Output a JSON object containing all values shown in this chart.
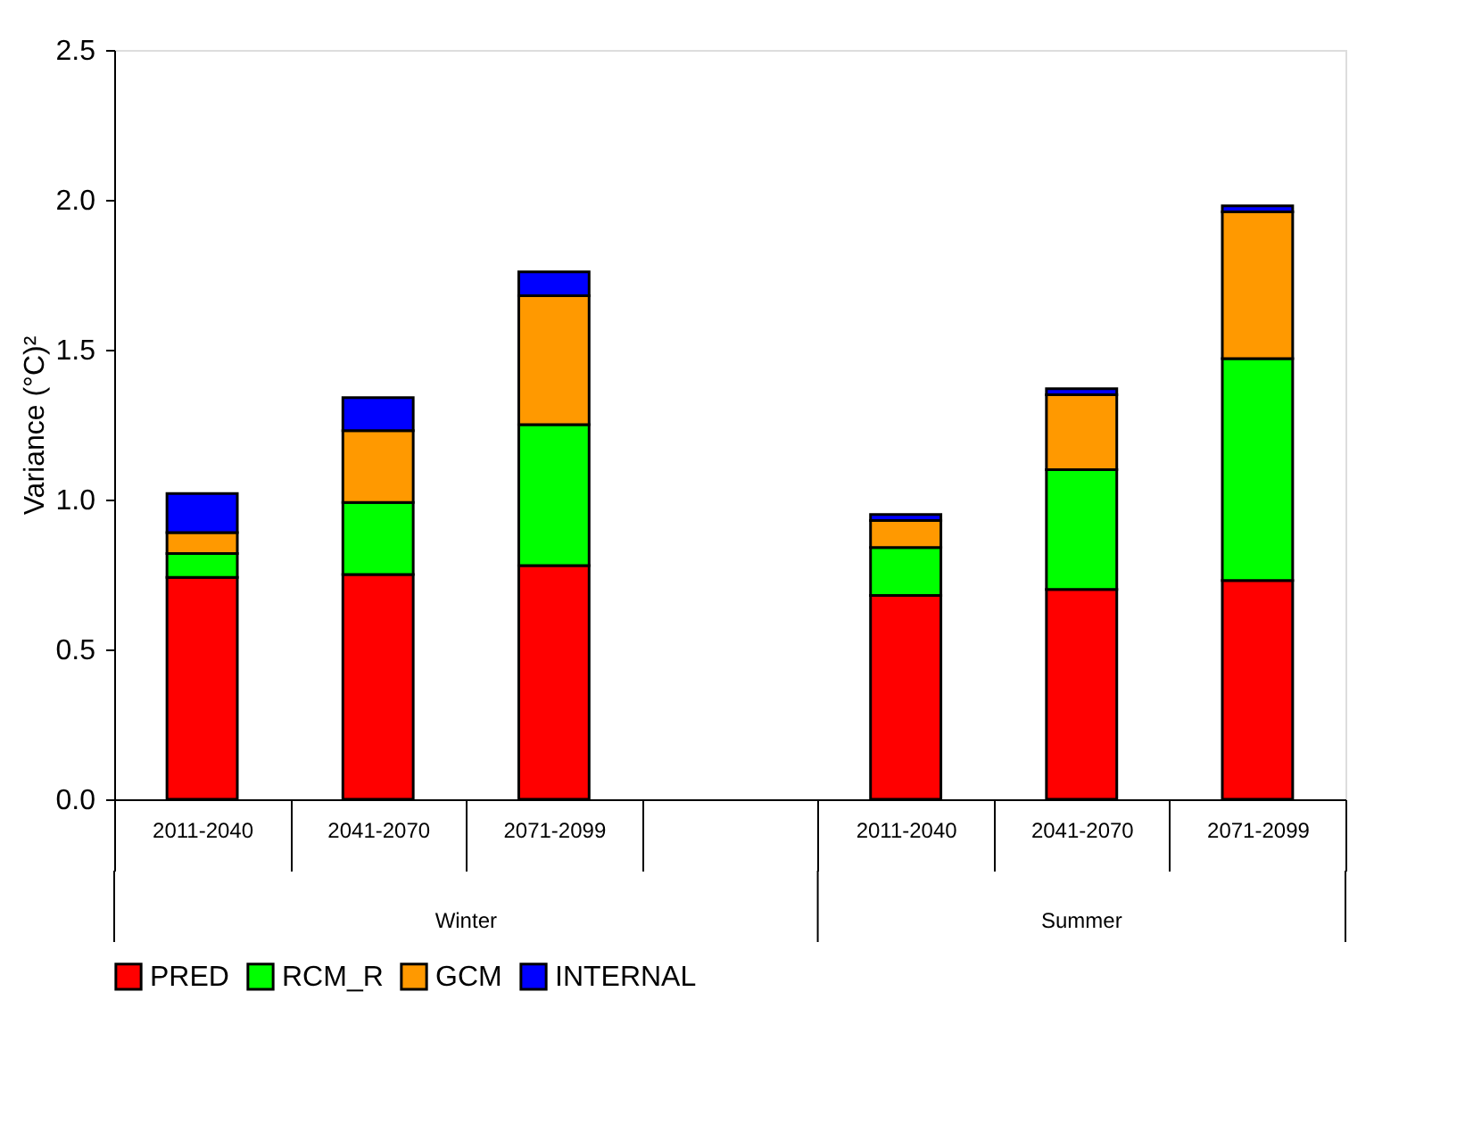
{
  "chart_data": {
    "type": "bar",
    "stacked": true,
    "ylabel": "Variance (°C)²",
    "categories": [
      "2011-2040",
      "2041-2070",
      "2071-2099",
      null,
      "2011-2040",
      "2041-2070",
      "2071-2099"
    ],
    "series": [
      {
        "name": "PRED",
        "color": "#ff0000",
        "values": [
          0.74,
          0.75,
          0.78,
          null,
          0.68,
          0.7,
          0.73
        ]
      },
      {
        "name": "RCM_R",
        "color": "#00ff00",
        "values": [
          0.08,
          0.24,
          0.47,
          null,
          0.16,
          0.4,
          0.74
        ]
      },
      {
        "name": "GCM",
        "color": "#ff9900",
        "values": [
          0.07,
          0.24,
          0.43,
          null,
          0.09,
          0.25,
          0.49
        ]
      },
      {
        "name": "INTERNAL",
        "color": "#0000ff",
        "values": [
          0.13,
          0.11,
          0.08,
          null,
          0.02,
          0.02,
          0.02
        ]
      }
    ],
    "annotations": [
      "Winter",
      "Summer"
    ],
    "ylim": [
      0,
      2.5
    ],
    "yticks": [
      {
        "value": 0,
        "label": "0.0"
      },
      0.5,
      {
        "value": 1,
        "label": "1.0"
      },
      1.5,
      {
        "value": 2,
        "label": "2.0"
      },
      2.5
    ],
    "grid": false,
    "legend": "bottom"
  }
}
